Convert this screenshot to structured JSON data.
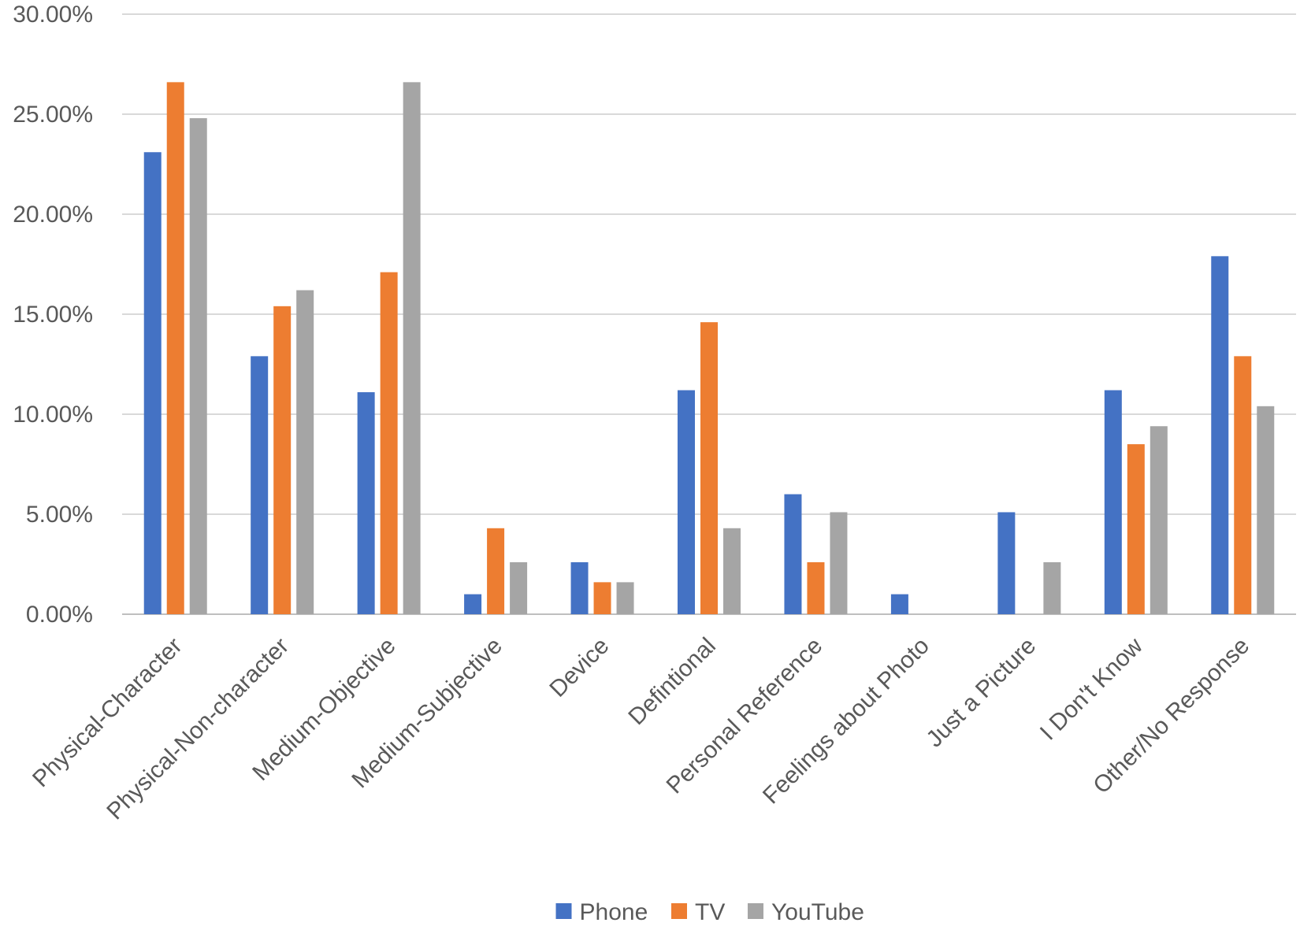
{
  "chart_data": {
    "type": "bar",
    "categories": [
      "Physical-Character",
      "Physical-Non-character",
      "Medium-Objective",
      "Medium-Subjective",
      "Device",
      "Defintional",
      "Personal Reference",
      "Feelings about Photo",
      "Just a Picture",
      "I Don't Know",
      "Other/No Response"
    ],
    "series": [
      {
        "name": "Phone",
        "color": "#4472C4",
        "values": [
          23.1,
          12.9,
          11.1,
          1.0,
          2.6,
          11.2,
          6.0,
          1.0,
          5.1,
          11.2,
          17.9
        ]
      },
      {
        "name": "TV",
        "color": "#ED7D31",
        "values": [
          26.6,
          15.4,
          17.1,
          4.3,
          1.6,
          14.6,
          2.6,
          0.0,
          0.0,
          8.5,
          12.9
        ]
      },
      {
        "name": "YouTube",
        "color": "#A5A5A5",
        "values": [
          24.8,
          16.2,
          26.6,
          2.6,
          1.6,
          4.3,
          5.1,
          0.0,
          2.6,
          9.4,
          10.4
        ]
      }
    ],
    "ylim": [
      0,
      30
    ],
    "yticks": [
      "0.00%",
      "5.00%",
      "10.00%",
      "15.00%",
      "20.00%",
      "25.00%",
      "30.00%"
    ],
    "grid": true,
    "legend_position": "bottom",
    "title": "",
    "xlabel": "",
    "ylabel": ""
  }
}
